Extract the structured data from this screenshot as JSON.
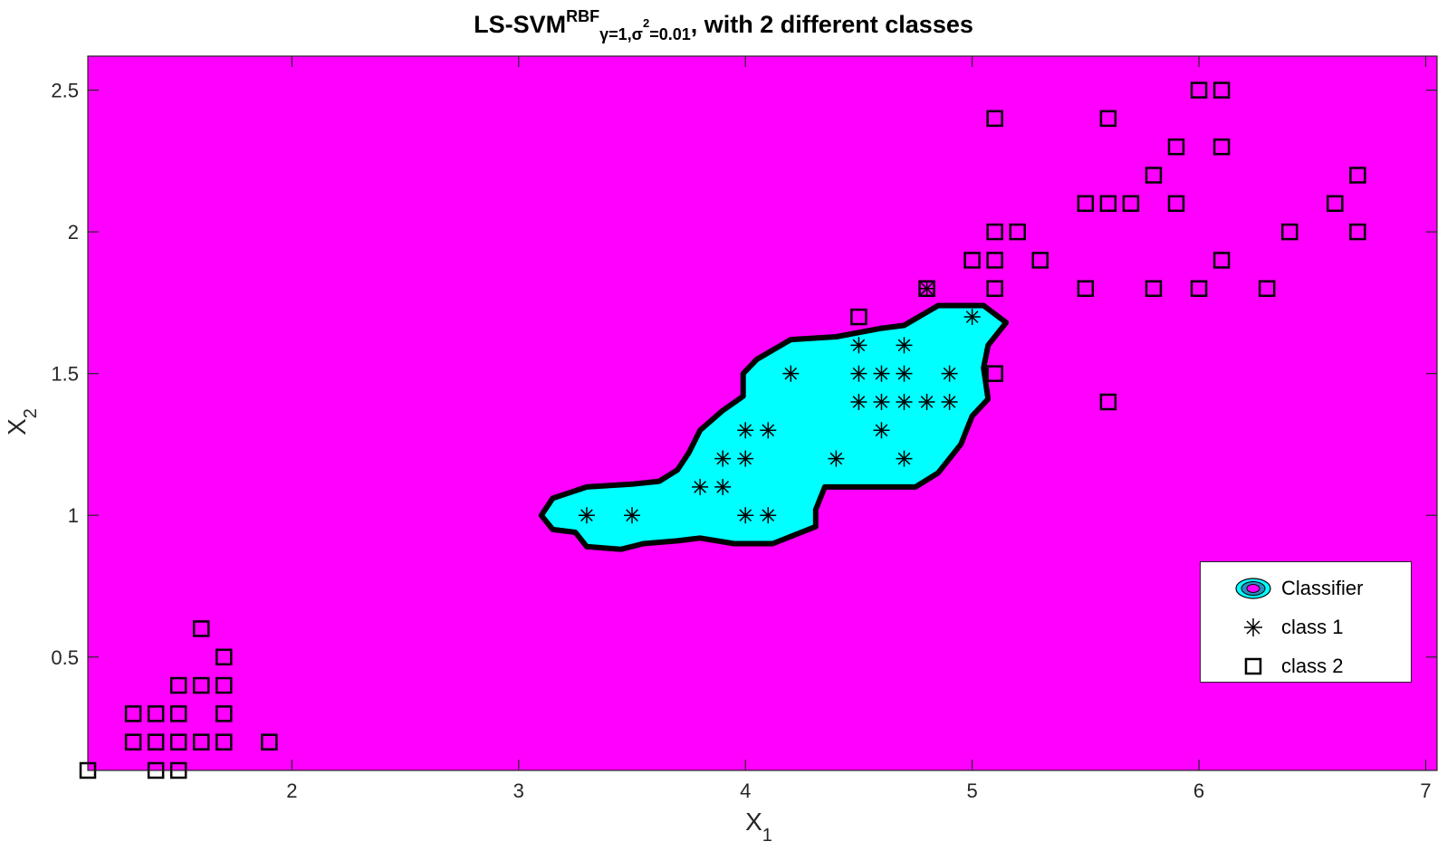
{
  "title": {
    "main": "LS-SVM",
    "superscript": "RBF",
    "subscript_pre": "γ=1,σ",
    "subscript_sup": "2",
    "subscript_post": "=0.01",
    "rest": ", with 2 different classes"
  },
  "axes": {
    "xlabel": "X",
    "xlabel_sub": "1",
    "ylabel": "X",
    "ylabel_sub": "2"
  },
  "legend": {
    "position": "bottom-right",
    "items": [
      {
        "label": "Classifier",
        "icon": "classifier-swatch-icon"
      },
      {
        "label": "class 1",
        "icon": "asterisk-marker-icon"
      },
      {
        "label": "class 2",
        "icon": "square-marker-icon"
      }
    ]
  },
  "colors": {
    "background_region": "#ff00ff",
    "class1_region": "#00ffff",
    "boundary": "#000000"
  },
  "chart_data": {
    "type": "scatter",
    "title": "LS-SVM RBF γ=1,σ²=0.01, with 2 different classes",
    "xlabel": "X1",
    "ylabel": "X2",
    "xlim": [
      1.1,
      7.05
    ],
    "ylim": [
      0.1,
      2.62
    ],
    "xticks": [
      2,
      3,
      4,
      5,
      6,
      7
    ],
    "yticks": [
      0.5,
      1,
      1.5,
      2,
      2.5
    ],
    "xtick_labels": [
      "2",
      "3",
      "4",
      "5",
      "6",
      "7"
    ],
    "ytick_labels": [
      "0.5",
      "1",
      "1.5",
      "2",
      "2.5"
    ],
    "grid": false,
    "legend_location": "bottom-right",
    "decision_region": {
      "class": "class 1",
      "boundary": [
        [
          3.1,
          1.0
        ],
        [
          3.15,
          1.06
        ],
        [
          3.3,
          1.1
        ],
        [
          3.5,
          1.11
        ],
        [
          3.62,
          1.12
        ],
        [
          3.7,
          1.16
        ],
        [
          3.75,
          1.22
        ],
        [
          3.8,
          1.3
        ],
        [
          3.9,
          1.37
        ],
        [
          3.99,
          1.42
        ],
        [
          3.99,
          1.5
        ],
        [
          4.05,
          1.55
        ],
        [
          4.2,
          1.62
        ],
        [
          4.4,
          1.63
        ],
        [
          4.6,
          1.66
        ],
        [
          4.7,
          1.67
        ],
        [
          4.85,
          1.74
        ],
        [
          5.05,
          1.74
        ],
        [
          5.15,
          1.68
        ],
        [
          5.07,
          1.6
        ],
        [
          5.05,
          1.52
        ],
        [
          5.07,
          1.41
        ],
        [
          5.0,
          1.35
        ],
        [
          4.95,
          1.25
        ],
        [
          4.85,
          1.15
        ],
        [
          4.75,
          1.1
        ],
        [
          4.35,
          1.1
        ],
        [
          4.31,
          1.02
        ],
        [
          4.31,
          0.96
        ],
        [
          4.12,
          0.9
        ],
        [
          3.95,
          0.9
        ],
        [
          3.8,
          0.92
        ],
        [
          3.7,
          0.91
        ],
        [
          3.55,
          0.9
        ],
        [
          3.45,
          0.88
        ],
        [
          3.3,
          0.89
        ],
        [
          3.25,
          0.94
        ],
        [
          3.15,
          0.95
        ]
      ]
    },
    "series": [
      {
        "name": "class 1",
        "marker": "asterisk",
        "points": [
          [
            3.3,
            1.0
          ],
          [
            3.5,
            1.0
          ],
          [
            3.8,
            1.1
          ],
          [
            3.9,
            1.1
          ],
          [
            3.9,
            1.2
          ],
          [
            4.0,
            1.2
          ],
          [
            4.0,
            1.3
          ],
          [
            4.1,
            1.3
          ],
          [
            4.0,
            1.0
          ],
          [
            4.1,
            1.0
          ],
          [
            4.2,
            1.5
          ],
          [
            4.4,
            1.2
          ],
          [
            4.5,
            1.6
          ],
          [
            4.5,
            1.5
          ],
          [
            4.5,
            1.4
          ],
          [
            4.6,
            1.5
          ],
          [
            4.6,
            1.4
          ],
          [
            4.6,
            1.3
          ],
          [
            4.7,
            1.6
          ],
          [
            4.7,
            1.5
          ],
          [
            4.7,
            1.4
          ],
          [
            4.7,
            1.2
          ],
          [
            4.8,
            1.4
          ],
          [
            4.9,
            1.5
          ],
          [
            4.9,
            1.4
          ],
          [
            5.0,
            1.7
          ],
          [
            4.8,
            1.8
          ]
        ]
      },
      {
        "name": "class 2",
        "marker": "square",
        "points": [
          [
            1.1,
            0.1
          ],
          [
            1.4,
            0.1
          ],
          [
            1.5,
            0.1
          ],
          [
            1.3,
            0.2
          ],
          [
            1.4,
            0.2
          ],
          [
            1.5,
            0.2
          ],
          [
            1.6,
            0.2
          ],
          [
            1.7,
            0.2
          ],
          [
            1.9,
            0.2
          ],
          [
            1.3,
            0.3
          ],
          [
            1.4,
            0.3
          ],
          [
            1.5,
            0.3
          ],
          [
            1.7,
            0.3
          ],
          [
            1.5,
            0.4
          ],
          [
            1.6,
            0.4
          ],
          [
            1.7,
            0.4
          ],
          [
            1.7,
            0.5
          ],
          [
            1.6,
            0.6
          ],
          [
            4.5,
            1.7
          ],
          [
            4.8,
            1.8
          ],
          [
            5.0,
            1.9
          ],
          [
            5.1,
            1.9
          ],
          [
            5.1,
            2.0
          ],
          [
            5.2,
            2.0
          ],
          [
            5.1,
            1.8
          ],
          [
            5.3,
            1.9
          ],
          [
            5.1,
            1.5
          ],
          [
            5.1,
            2.4
          ],
          [
            5.5,
            1.8
          ],
          [
            5.5,
            2.1
          ],
          [
            5.6,
            2.1
          ],
          [
            5.7,
            2.1
          ],
          [
            5.6,
            2.4
          ],
          [
            5.6,
            1.4
          ],
          [
            5.8,
            2.2
          ],
          [
            5.8,
            1.8
          ],
          [
            5.9,
            2.3
          ],
          [
            5.9,
            2.1
          ],
          [
            6.0,
            2.5
          ],
          [
            6.1,
            2.5
          ],
          [
            6.1,
            2.3
          ],
          [
            6.0,
            1.8
          ],
          [
            6.1,
            1.9
          ],
          [
            6.3,
            1.8
          ],
          [
            6.4,
            2.0
          ],
          [
            6.6,
            2.1
          ],
          [
            6.7,
            2.2
          ],
          [
            6.7,
            2.0
          ]
        ]
      }
    ]
  }
}
